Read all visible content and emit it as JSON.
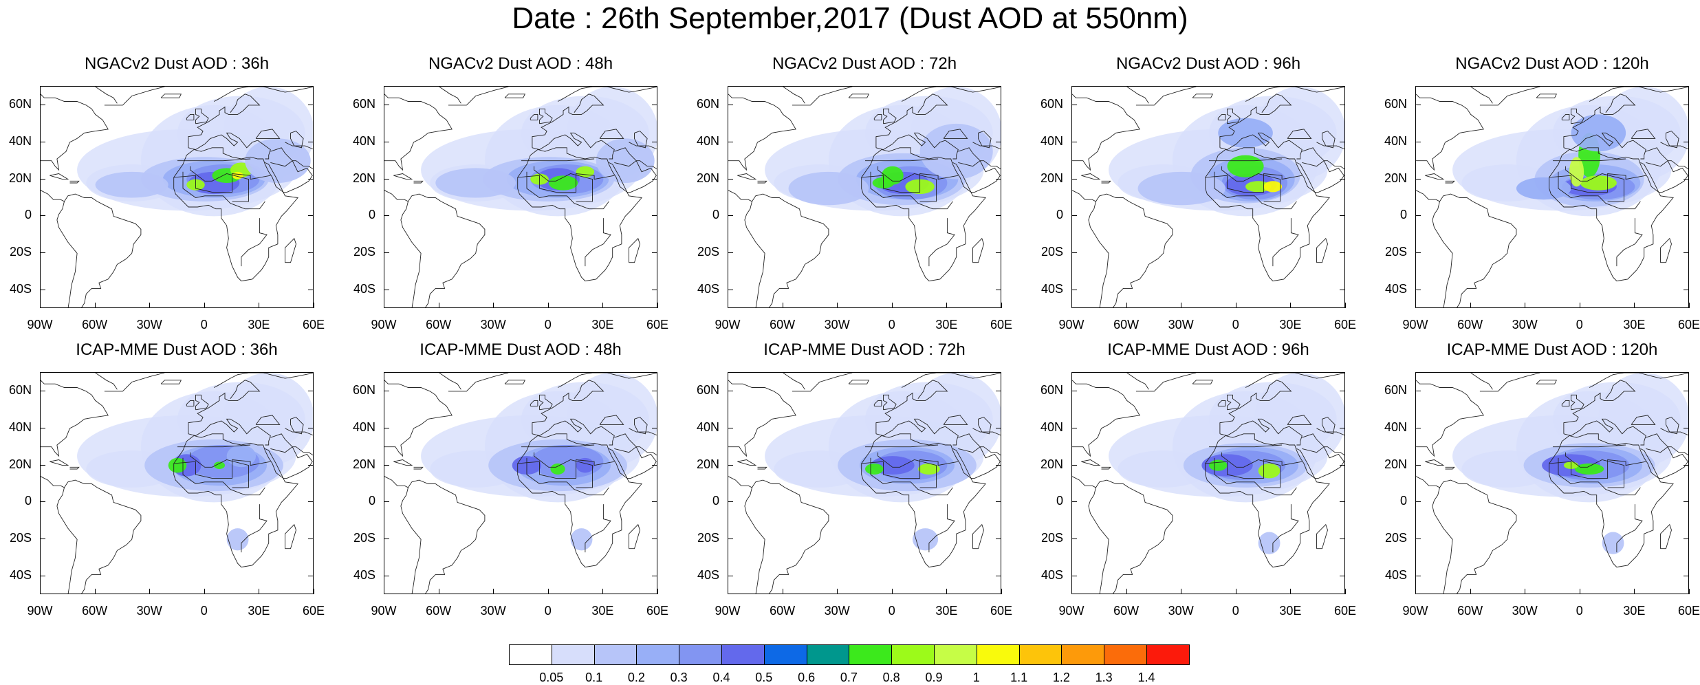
{
  "title": "Date : 26th September,2017 (Dust AOD at 550nm)",
  "panels": [
    {
      "title": "NGACv2 Dust AOD : 36h"
    },
    {
      "title": "NGACv2 Dust AOD : 48h"
    },
    {
      "title": "NGACv2 Dust AOD : 72h"
    },
    {
      "title": "NGACv2 Dust AOD : 96h"
    },
    {
      "title": "NGACv2 Dust AOD : 120h"
    },
    {
      "title": "ICAP-MME Dust AOD : 36h"
    },
    {
      "title": "ICAP-MME Dust AOD : 48h"
    },
    {
      "title": "ICAP-MME Dust AOD : 72h"
    },
    {
      "title": "ICAP-MME Dust AOD : 96h"
    },
    {
      "title": "ICAP-MME Dust AOD : 120h"
    }
  ],
  "lat_ticks": [
    "60N",
    "40N",
    "20N",
    "0",
    "20S",
    "40S"
  ],
  "lon_ticks": [
    "90W",
    "60W",
    "30W",
    "0",
    "30E",
    "60E"
  ],
  "map_extent": {
    "lon": [
      -90,
      60
    ],
    "lat": [
      -50,
      70
    ]
  },
  "colorbar": {
    "colors": [
      "#ffffff",
      "#d7defb",
      "#b7c5f9",
      "#98aff7",
      "#8295f2",
      "#6369ec",
      "#0d69e6",
      "#00978d",
      "#3ce91c",
      "#9cfa1a",
      "#c6fd46",
      "#f9fa0c",
      "#fdc40a",
      "#fd9a0a",
      "#fb6c0a",
      "#fc1a0b"
    ],
    "labels": [
      "0.05",
      "0.1",
      "0.2",
      "0.3",
      "0.4",
      "0.5",
      "0.6",
      "0.7",
      "0.8",
      "0.9",
      "1",
      "1.1",
      "1.2",
      "1.3",
      "1.4"
    ]
  }
}
